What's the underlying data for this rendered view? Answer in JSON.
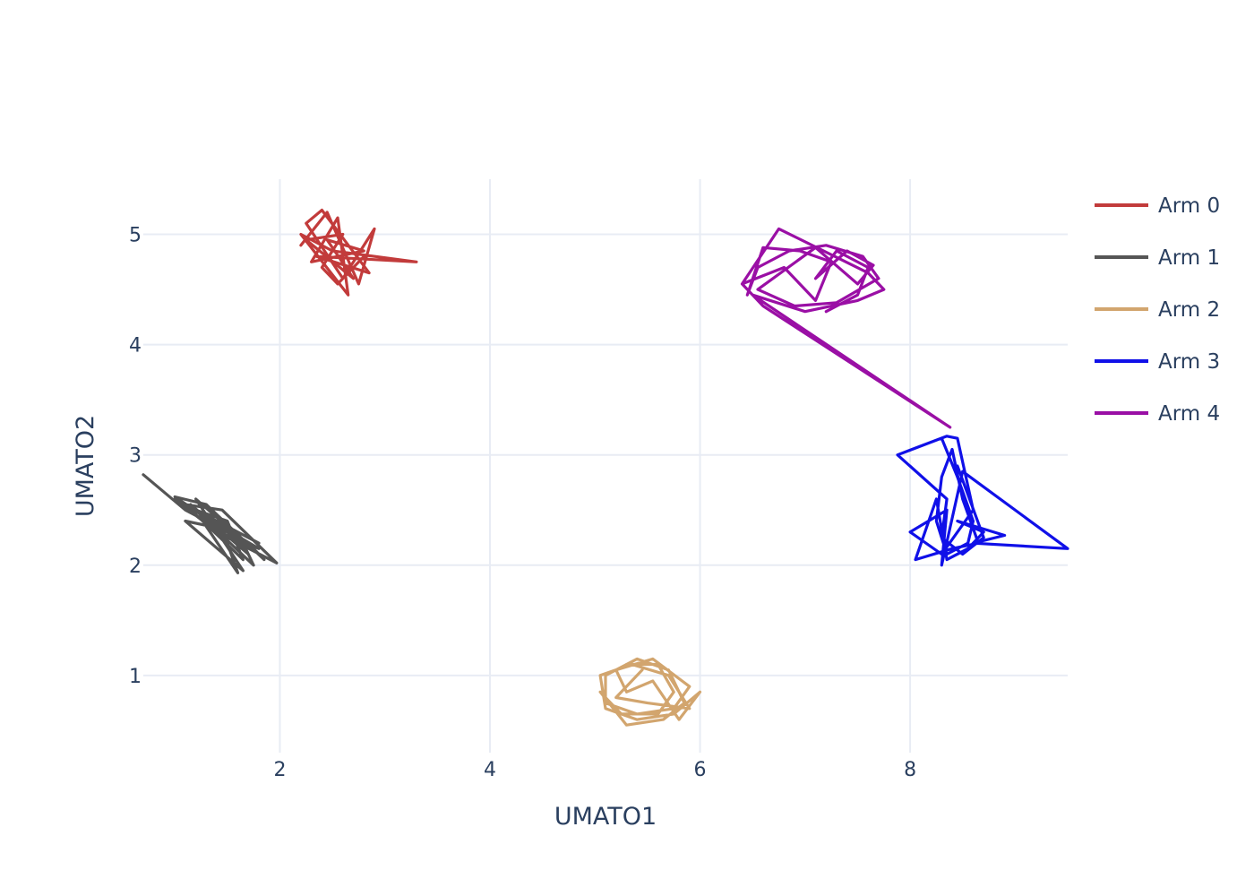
{
  "chart_data": {
    "type": "line",
    "xlabel": "UMATO1",
    "ylabel": "UMATO2",
    "xlim": [
      0.7,
      9.5
    ],
    "ylim": [
      0.3,
      5.5
    ],
    "xticks": [
      2,
      4,
      6,
      8
    ],
    "yticks": [
      1,
      2,
      3,
      4,
      5
    ],
    "grid": true,
    "legend_position": "right",
    "series": [
      {
        "name": "Arm 0",
        "color": "#c23b3b",
        "points": [
          [
            2.2,
            4.9
          ],
          [
            2.45,
            5.2
          ],
          [
            2.75,
            4.55
          ],
          [
            2.9,
            5.05
          ],
          [
            2.6,
            4.6
          ],
          [
            2.25,
            5.1
          ],
          [
            2.4,
            5.22
          ],
          [
            2.85,
            4.65
          ],
          [
            2.35,
            4.8
          ],
          [
            3.3,
            4.75
          ],
          [
            2.5,
            4.85
          ],
          [
            2.2,
            5.0
          ],
          [
            2.65,
            4.45
          ],
          [
            2.55,
            5.15
          ],
          [
            2.3,
            4.75
          ],
          [
            2.8,
            4.85
          ],
          [
            2.45,
            4.95
          ],
          [
            2.7,
            4.6
          ],
          [
            2.25,
            4.95
          ],
          [
            2.6,
            5.0
          ],
          [
            2.4,
            4.7
          ],
          [
            2.55,
            4.55
          ],
          [
            2.8,
            4.8
          ]
        ]
      },
      {
        "name": "Arm 1",
        "color": "#555555",
        "points": [
          [
            0.7,
            2.82
          ],
          [
            1.1,
            2.5
          ],
          [
            1.7,
            2.2
          ],
          [
            1.85,
            2.05
          ],
          [
            1.3,
            2.55
          ],
          [
            1.0,
            2.62
          ],
          [
            1.5,
            2.3
          ],
          [
            1.8,
            2.1
          ],
          [
            1.2,
            2.6
          ],
          [
            1.65,
            1.95
          ],
          [
            1.1,
            2.4
          ],
          [
            1.6,
            2.3
          ],
          [
            1.75,
            2.0
          ],
          [
            1.25,
            2.45
          ],
          [
            1.4,
            2.45
          ],
          [
            1.7,
            2.1
          ],
          [
            1.15,
            2.55
          ],
          [
            1.5,
            2.2
          ],
          [
            1.6,
            1.93
          ],
          [
            1.3,
            2.35
          ],
          [
            1.8,
            2.15
          ],
          [
            1.0,
            2.6
          ],
          [
            1.4,
            2.3
          ],
          [
            1.97,
            2.02
          ],
          [
            1.45,
            2.5
          ],
          [
            1.1,
            2.55
          ],
          [
            1.65,
            2.05
          ],
          [
            1.5,
            2.4
          ],
          [
            1.2,
            2.5
          ],
          [
            1.8,
            2.2
          ]
        ]
      },
      {
        "name": "Arm 2",
        "color": "#d2a56e",
        "points": [
          [
            5.3,
            1.1
          ],
          [
            5.6,
            1.1
          ],
          [
            5.75,
            0.85
          ],
          [
            5.6,
            0.65
          ],
          [
            5.25,
            0.65
          ],
          [
            5.05,
            0.85
          ],
          [
            5.3,
            0.55
          ],
          [
            5.65,
            0.6
          ],
          [
            5.85,
            0.75
          ],
          [
            5.7,
            1.05
          ],
          [
            5.4,
            1.15
          ],
          [
            5.1,
            1.0
          ],
          [
            5.1,
            0.75
          ],
          [
            5.4,
            0.65
          ],
          [
            5.75,
            0.7
          ],
          [
            5.9,
            0.9
          ],
          [
            5.55,
            1.15
          ],
          [
            5.2,
            1.05
          ],
          [
            5.3,
            0.85
          ],
          [
            5.55,
            0.95
          ],
          [
            5.8,
            0.6
          ],
          [
            6.0,
            0.85
          ],
          [
            5.75,
            0.65
          ],
          [
            5.4,
            0.6
          ],
          [
            5.1,
            0.7
          ],
          [
            5.05,
            1.0
          ],
          [
            5.35,
            1.1
          ],
          [
            5.7,
            1.0
          ],
          [
            5.9,
            0.7
          ],
          [
            5.5,
            0.75
          ],
          [
            5.2,
            0.8
          ],
          [
            5.45,
            1.05
          ]
        ]
      },
      {
        "name": "Arm 3",
        "color": "#1010e8",
        "points": [
          [
            8.3,
            3.15
          ],
          [
            8.45,
            2.8
          ],
          [
            8.6,
            2.4
          ],
          [
            8.55,
            2.2
          ],
          [
            8.35,
            2.1
          ],
          [
            8.25,
            2.4
          ],
          [
            8.3,
            2.8
          ],
          [
            8.4,
            3.05
          ],
          [
            8.5,
            2.6
          ],
          [
            8.65,
            2.2
          ],
          [
            8.4,
            2.15
          ],
          [
            8.05,
            2.05
          ],
          [
            8.25,
            2.6
          ],
          [
            8.35,
            2.05
          ],
          [
            8.55,
            2.15
          ],
          [
            8.7,
            2.3
          ],
          [
            8.45,
            2.4
          ],
          [
            8.9,
            2.27
          ],
          [
            8.6,
            2.2
          ],
          [
            9.5,
            2.15
          ],
          [
            8.5,
            2.85
          ],
          [
            8.3,
            2.0
          ],
          [
            8.35,
            2.5
          ],
          [
            8.0,
            2.3
          ],
          [
            8.3,
            2.1
          ],
          [
            8.6,
            2.5
          ],
          [
            8.45,
            3.15
          ],
          [
            8.35,
            3.17
          ],
          [
            7.88,
            3.0
          ],
          [
            8.35,
            2.6
          ],
          [
            8.3,
            2.25
          ],
          [
            8.5,
            2.1
          ],
          [
            8.7,
            2.25
          ],
          [
            8.45,
            2.9
          ]
        ]
      },
      {
        "name": "Arm 4",
        "color": "#9a0fa5",
        "points": [
          [
            6.4,
            4.55
          ],
          [
            6.75,
            5.05
          ],
          [
            7.6,
            4.65
          ],
          [
            7.75,
            4.5
          ],
          [
            7.5,
            4.4
          ],
          [
            7.0,
            4.3
          ],
          [
            6.5,
            4.45
          ],
          [
            6.6,
            4.35
          ],
          [
            8.38,
            3.25
          ],
          [
            6.5,
            4.45
          ],
          [
            6.4,
            4.55
          ],
          [
            6.8,
            4.7
          ],
          [
            7.1,
            4.4
          ],
          [
            7.25,
            4.75
          ],
          [
            6.95,
            4.85
          ],
          [
            6.6,
            4.88
          ],
          [
            6.45,
            4.45
          ],
          [
            6.55,
            4.7
          ],
          [
            6.85,
            4.85
          ],
          [
            7.2,
            4.9
          ],
          [
            7.55,
            4.8
          ],
          [
            7.7,
            4.6
          ],
          [
            7.3,
            4.38
          ],
          [
            6.9,
            4.35
          ],
          [
            6.55,
            4.5
          ],
          [
            7.1,
            4.88
          ],
          [
            7.5,
            4.55
          ],
          [
            7.65,
            4.72
          ],
          [
            7.4,
            4.85
          ],
          [
            7.1,
            4.6
          ],
          [
            7.3,
            4.85
          ],
          [
            7.6,
            4.7
          ],
          [
            7.5,
            4.45
          ],
          [
            7.2,
            4.3
          ]
        ]
      }
    ]
  }
}
